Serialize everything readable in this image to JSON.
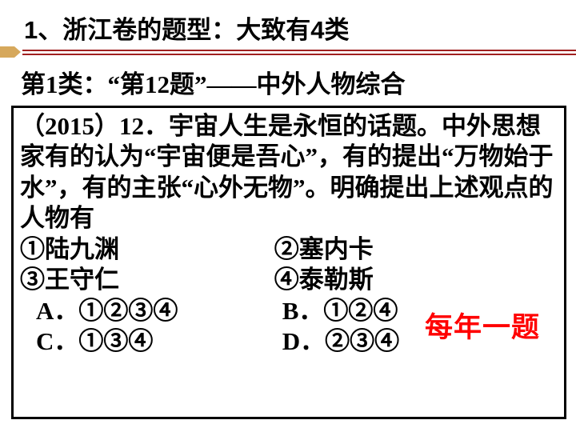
{
  "title": "1、浙江卷的题型：大致有4类",
  "subtitle": "第1类：“第12题”——中外人物综合",
  "box": {
    "stem": "（2015）12．宇宙人生是永恒的话题。中外思想家有的认为“宇宙便是吾心”，有的提出“万物始于水”，有的主张“心外无物”。明确提出上述观点的人物有",
    "opt1": "①陆九渊",
    "opt2": "②塞内卡",
    "opt3": "③王守仁",
    "opt4": "④泰勒斯",
    "choiceA": "A．①②③④",
    "choiceB": "B．①②④",
    "choiceC": "C．①③④",
    "choiceD": "D．②③④"
  },
  "annotation": "每年一题",
  "colors": {
    "arrow": "#d6a85c",
    "line": "#a02020",
    "annotation": "#ff0000",
    "text": "#000000",
    "background": "#ffffff"
  }
}
